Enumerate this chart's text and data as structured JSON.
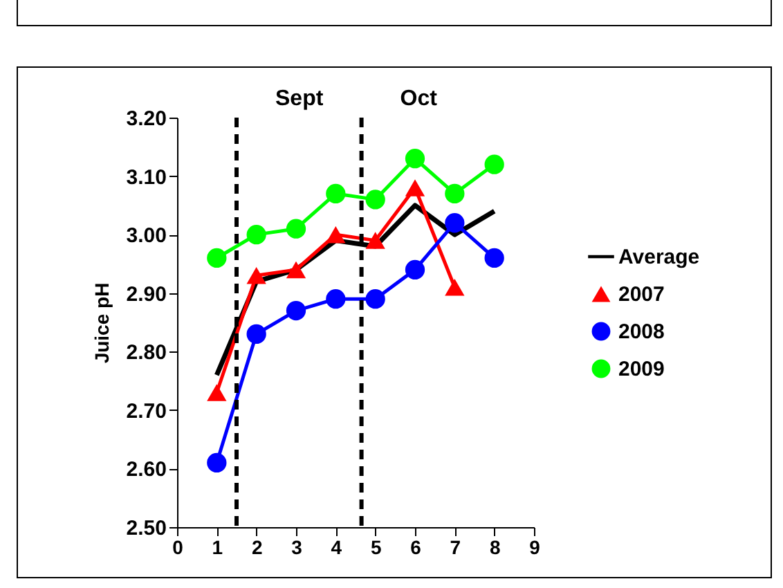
{
  "chart_data": {
    "type": "line",
    "ylabel": "Juice pH",
    "x": [
      1,
      2,
      3,
      4,
      5,
      6,
      7,
      8
    ],
    "series": [
      {
        "name": "Average",
        "color": "#000000",
        "marker": "none",
        "values": [
          2.76,
          2.92,
          2.94,
          2.99,
          2.98,
          3.05,
          3.0,
          3.04
        ]
      },
      {
        "name": "2007",
        "color": "#ff0000",
        "marker": "triangle",
        "values": [
          2.73,
          2.93,
          2.94,
          3.0,
          2.99,
          3.08,
          2.91,
          null
        ]
      },
      {
        "name": "2008",
        "color": "#0000ff",
        "marker": "circle",
        "values": [
          2.61,
          2.83,
          2.87,
          2.89,
          2.89,
          2.94,
          3.02,
          2.96
        ]
      },
      {
        "name": "2009",
        "color": "#00ff00",
        "marker": "circle",
        "values": [
          2.96,
          3.0,
          3.01,
          3.07,
          3.06,
          3.13,
          3.07,
          3.12
        ]
      }
    ],
    "xlim": [
      0,
      9
    ],
    "xticks": [
      0,
      1,
      2,
      3,
      4,
      5,
      6,
      7,
      8,
      9
    ],
    "ylim": [
      2.5,
      3.2
    ],
    "yticks": [
      {
        "value": 2.5,
        "label": "2.50"
      },
      {
        "value": 2.6,
        "label": "2.60"
      },
      {
        "value": 2.7,
        "label": "2.70"
      },
      {
        "value": 2.8,
        "label": "2.80"
      },
      {
        "value": 2.9,
        "label": "2.90"
      },
      {
        "value": 3.0,
        "label": "3.00"
      },
      {
        "value": 3.1,
        "label": "3.10"
      },
      {
        "value": 3.2,
        "label": "3.20"
      }
    ],
    "ref_lines": [
      {
        "axis": "x",
        "value": 1.5,
        "label": "Sept",
        "color": "#000000",
        "line_style": "dashed"
      },
      {
        "axis": "x",
        "value": 4.65,
        "label": "Oct",
        "color": "#000000",
        "line_style": "dashed"
      }
    ],
    "grid": false,
    "legend": "right"
  }
}
